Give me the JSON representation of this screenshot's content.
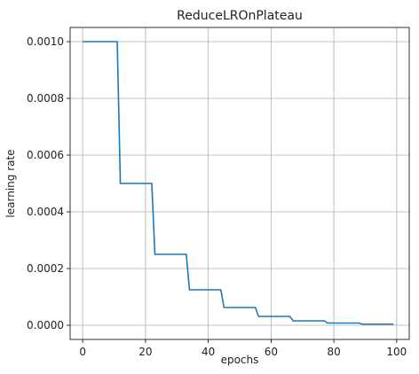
{
  "chart_data": {
    "type": "line",
    "title": "ReduceLROnPlateau",
    "xlabel": "epochs",
    "ylabel": "learning rate",
    "xlim": [
      -4,
      104
    ],
    "ylim": [
      -5e-05,
      0.00105
    ],
    "xticks": [
      0,
      20,
      40,
      60,
      80,
      100
    ],
    "yticks": [
      0.0,
      0.0002,
      0.0004,
      0.0006,
      0.0008,
      0.001
    ],
    "xtick_labels": [
      "0",
      "20",
      "40",
      "60",
      "80",
      "100"
    ],
    "ytick_labels": [
      "0.0000",
      "0.0002",
      "0.0004",
      "0.0006",
      "0.0008",
      "0.0010"
    ],
    "grid": true,
    "line_color": "#1f77b4",
    "series": [
      {
        "x": [
          0,
          11,
          12,
          22,
          23,
          33,
          34,
          44,
          45,
          55,
          56,
          66,
          67,
          77,
          78,
          88,
          89,
          99
        ],
        "values": [
          0.001,
          0.001,
          0.0005,
          0.0005,
          0.00025,
          0.00025,
          0.000125,
          0.000125,
          6.25e-05,
          6.25e-05,
          3.125e-05,
          3.125e-05,
          1.5625e-05,
          1.5625e-05,
          7.8125e-06,
          7.8125e-06,
          3.9e-06,
          3.9e-06
        ]
      }
    ]
  }
}
